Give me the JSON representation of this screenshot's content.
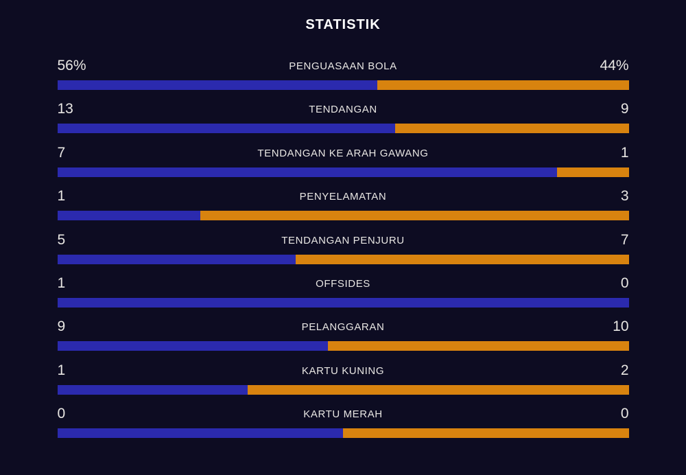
{
  "title": "STATISTIK",
  "colors": {
    "background": "#0d0c22",
    "home_bar": "#2b2aae",
    "away_bar": "#d8830f",
    "text": "#e8e6e3"
  },
  "rows": [
    {
      "home": "56%",
      "label": "PENGUASAAN BOLA",
      "away": "44%",
      "home_pct": 56
    },
    {
      "home": "13",
      "label": "TENDANGAN",
      "away": "9",
      "home_pct": 59.09
    },
    {
      "home": "7",
      "label": "TENDANGAN KE ARAH GAWANG",
      "away": "1",
      "home_pct": 87.5
    },
    {
      "home": "1",
      "label": "PENYELAMATAN",
      "away": "3",
      "home_pct": 25
    },
    {
      "home": "5",
      "label": "TENDANGAN PENJURU",
      "away": "7",
      "home_pct": 41.67
    },
    {
      "home": "1",
      "label": "OFFSIDES",
      "away": "0",
      "home_pct": 100
    },
    {
      "home": "9",
      "label": "PELANGGARAN",
      "away": "10",
      "home_pct": 47.37
    },
    {
      "home": "1",
      "label": "KARTU KUNING",
      "away": "2",
      "home_pct": 33.33
    },
    {
      "home": "0",
      "label": "KARTU MERAH",
      "away": "0",
      "home_pct": 50
    }
  ],
  "chart_data": {
    "type": "bar",
    "subtype": "horizontal-stacked-comparison",
    "title": "STATISTIK",
    "categories": [
      "PENGUASAAN BOLA",
      "TENDANGAN",
      "TENDANGAN KE ARAH GAWANG",
      "PENYELAMATAN",
      "TENDANGAN PENJURU",
      "OFFSIDES",
      "PELANGGARAN",
      "KARTU KUNING",
      "KARTU MERAH"
    ],
    "series": [
      {
        "name": "home",
        "color": "#2b2aae",
        "values": [
          56,
          13,
          7,
          1,
          5,
          1,
          9,
          1,
          0
        ]
      },
      {
        "name": "away",
        "color": "#d8830f",
        "values": [
          44,
          9,
          1,
          3,
          7,
          0,
          10,
          2,
          0
        ]
      }
    ],
    "value_units": [
      "%",
      "count",
      "count",
      "count",
      "count",
      "count",
      "count",
      "count",
      "count"
    ],
    "bar_fill_rule": "each bar shows home share = home/(home+away); 50/50 when both zero, 100% when away is zero",
    "legend_position": "none",
    "grid": false,
    "xlabel": "",
    "ylabel": ""
  }
}
